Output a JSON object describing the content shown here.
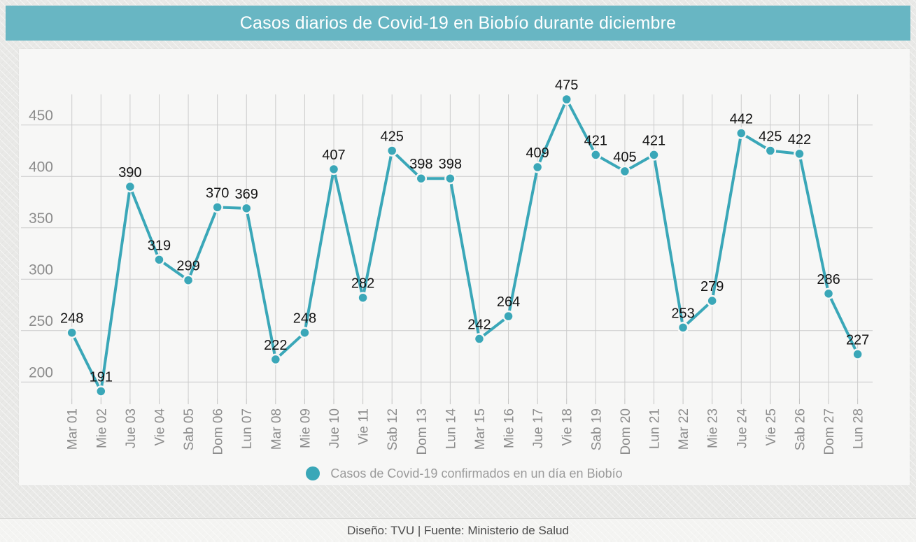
{
  "title": "Casos diarios de Covid-19 en Biobío durante diciembre",
  "footer": "Diseño: TVU | Fuente: Ministerio de Salud",
  "colors": {
    "accent": "#3AA7B8",
    "title_bar_bg": "#68B6C3",
    "title_text": "#FFFFFF",
    "page_bg": "#E9E9E7",
    "panel_bg": "#F7F7F6",
    "grid": "#CBCBCB",
    "tick": "#C2C2C2",
    "axis_label": "#8C8C8C",
    "value_label": "#141414",
    "marker_halo": "#F7F7F6",
    "legend_text": "#9A9A9A",
    "footer_text": "#4B4B4B"
  },
  "chart_data": {
    "type": "line",
    "title": "Casos diarios de Covid-19 en Biobío durante diciembre",
    "x": [
      "Mar 01",
      "Mie 02",
      "Jue 03",
      "Vie 04",
      "Sab 05",
      "Dom 06",
      "Lun 07",
      "Mar 08",
      "Mie 09",
      "Jue 10",
      "Vie 11",
      "Sab 12",
      "Dom 13",
      "Lun 14",
      "Mar 15",
      "Mie 16",
      "Jue 17",
      "Vie 18",
      "Sab 19",
      "Dom 20",
      "Lun 21",
      "Mar 22",
      "Mie 23",
      "Jue 24",
      "Vie 25",
      "Sab 26",
      "Dom 27",
      "Lun 28"
    ],
    "series": [
      {
        "name": "Casos de Covid-19 confirmados en un día en Biobío",
        "values": [
          248,
          191,
          390,
          319,
          299,
          370,
          369,
          222,
          248,
          407,
          282,
          425,
          398,
          398,
          242,
          264,
          409,
          475,
          421,
          405,
          421,
          253,
          279,
          442,
          425,
          422,
          286,
          227
        ]
      }
    ],
    "yticks": [
      200,
      250,
      300,
      350,
      400,
      450
    ],
    "ylim": [
      185,
      490
    ],
    "xlabel": "",
    "ylabel": "",
    "grid": true,
    "point_labels": true,
    "legend_position": "bottom",
    "source_note": "Diseño: TVU | Fuente: Ministerio de Salud"
  }
}
